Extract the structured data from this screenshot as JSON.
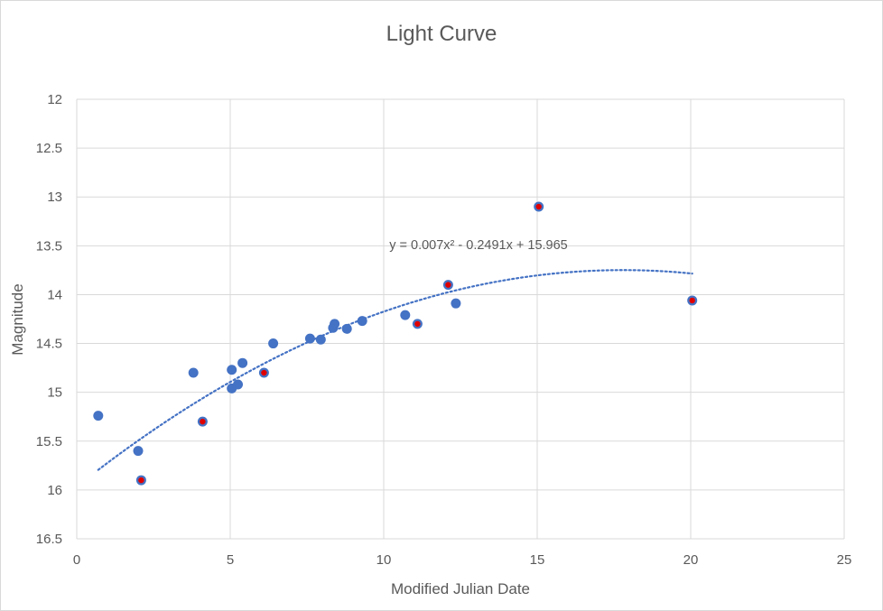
{
  "chart_data": {
    "type": "scatter",
    "title": "Light Curve",
    "xlabel": "Modified Julian Date",
    "ylabel": "Magnitude",
    "xlim": [
      0,
      25
    ],
    "ylim": [
      12,
      16.5
    ],
    "y_inverted": true,
    "x_ticks": [
      "0",
      "5",
      "10",
      "15",
      "20",
      "25"
    ],
    "y_ticks": [
      "12",
      "12.5",
      "13",
      "13.5",
      "14",
      "14.5",
      "15",
      "15.5",
      "16",
      "16.5"
    ],
    "grid": true,
    "legend": "none",
    "series": [
      {
        "marker_color": "#4472c4",
        "points": [
          {
            "x": 0.7,
            "y": 15.24
          },
          {
            "x": 2.0,
            "y": 15.6
          },
          {
            "x": 3.8,
            "y": 14.8
          },
          {
            "x": 5.05,
            "y": 14.77
          },
          {
            "x": 5.05,
            "y": 14.96
          },
          {
            "x": 5.25,
            "y": 14.92
          },
          {
            "x": 5.4,
            "y": 14.7
          },
          {
            "x": 6.4,
            "y": 14.5
          },
          {
            "x": 7.6,
            "y": 14.45
          },
          {
            "x": 7.95,
            "y": 14.46
          },
          {
            "x": 8.35,
            "y": 14.34
          },
          {
            "x": 8.4,
            "y": 14.3
          },
          {
            "x": 8.8,
            "y": 14.35
          },
          {
            "x": 9.3,
            "y": 14.27
          },
          {
            "x": 10.7,
            "y": 14.21
          },
          {
            "x": 12.35,
            "y": 14.09
          }
        ]
      },
      {
        "marker_color": "#4472c4",
        "center_color": "#e00000",
        "points": [
          {
            "x": 2.1,
            "y": 15.9
          },
          {
            "x": 4.1,
            "y": 15.3
          },
          {
            "x": 6.1,
            "y": 14.8
          },
          {
            "x": 11.1,
            "y": 14.3
          },
          {
            "x": 12.1,
            "y": 13.9
          },
          {
            "x": 15.05,
            "y": 13.1
          },
          {
            "x": 20.05,
            "y": 14.06
          }
        ]
      }
    ],
    "trendline": {
      "type": "polynomial-2",
      "style": "dotted",
      "color": "#4472c4",
      "coefficients": {
        "a": 0.007,
        "b": -0.2491,
        "c": 15.965
      },
      "x_range": [
        0.7,
        20.05
      ],
      "equation_label": "y = 0.007x² - 0.2491x + 15.965"
    }
  }
}
